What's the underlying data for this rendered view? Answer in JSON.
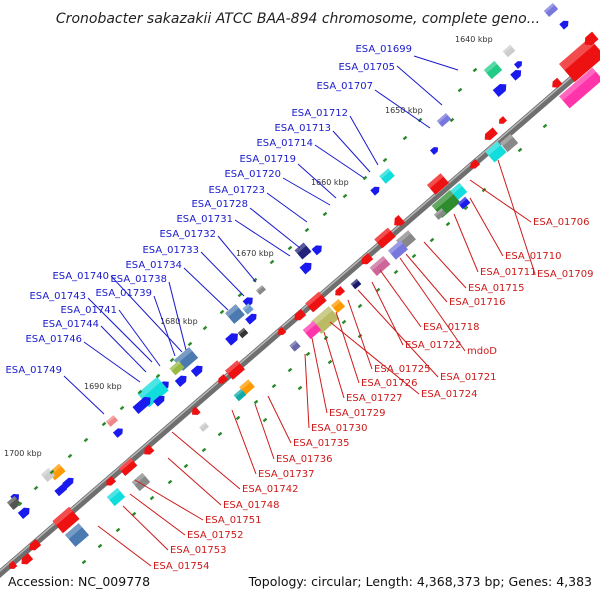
{
  "header": {
    "title": "Cronobacter sakazakii ATCC BAA-894 chromosome, complete geno..."
  },
  "footer": {
    "accession": "Accession: NC_009778",
    "summary": "Topology: circular; Length: 4,368,373 bp; Genes: 4,383"
  },
  "colors": {
    "backbone": "#707070",
    "forward_label": "#1a1acc",
    "reverse_label": "#cc1a1a",
    "tick_mark": "#2e8b2e"
  },
  "ticks": [
    "1640 kbp",
    "1650 kbp",
    "1660 kbp",
    "1670 kbp",
    "1680 kbp",
    "1690 kbp",
    "1700 kbp"
  ],
  "forward_genes": [
    "ESA_01699",
    "ESA_01705",
    "ESA_01707",
    "ESA_01712",
    "ESA_01713",
    "ESA_01714",
    "ESA_01719",
    "ESA_01720",
    "ESA_01723",
    "ESA_01728",
    "ESA_01731",
    "ESA_01732",
    "ESA_01733",
    "ESA_01734",
    "ESA_01738",
    "ESA_01740",
    "ESA_01739",
    "ESA_01743",
    "ESA_01741",
    "ESA_01744",
    "ESA_01746",
    "ESA_01749"
  ],
  "reverse_genes": [
    "ESA_01706",
    "ESA_01710",
    "ESA_01711",
    "ESA_01709",
    "ESA_01715",
    "ESA_01716",
    "ESA_01718",
    "ESA_01722",
    "mdoD",
    "ESA_01721",
    "ESA_01725",
    "ESA_01726",
    "ESA_01724",
    "ESA_01727",
    "ESA_01729",
    "ESA_01730",
    "ESA_01735",
    "ESA_01736",
    "ESA_01737",
    "ESA_01742",
    "ESA_01748",
    "ESA_01751",
    "ESA_01752",
    "ESA_01753",
    "ESA_01754"
  ]
}
